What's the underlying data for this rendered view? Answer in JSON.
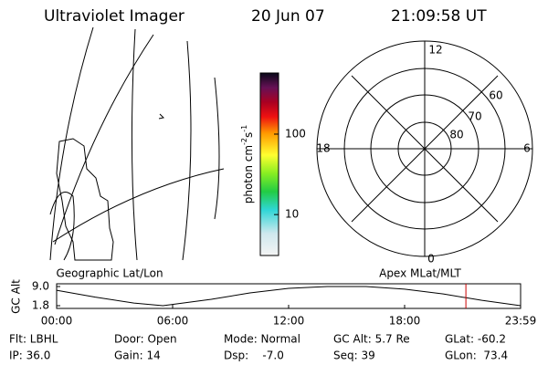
{
  "header": {
    "title": "Ultraviolet Imager",
    "date": "20 Jun 07",
    "time": "21:09:58 UT"
  },
  "colorbar": {
    "label": "photon cm",
    "label_sup1": "-2",
    "label_mid": "s",
    "label_sup2": "-1",
    "log": true,
    "lim": [
      3.1,
      575
    ],
    "ticks": [
      10,
      100
    ]
  },
  "polar": {
    "mlt_labels": [
      "12",
      "6",
      "0",
      "18"
    ],
    "lat_labels": [
      "60",
      "70",
      "80"
    ]
  },
  "map_labels": {
    "left": "Geographic Lat/Lon",
    "right": "Apex MLat/MLT"
  },
  "chart_data": {
    "type": "line",
    "ylabel": "GC Alt",
    "x": [
      0,
      2,
      4,
      5.5,
      8,
      10,
      12,
      14,
      16,
      18,
      20,
      22,
      24
    ],
    "values": [
      7.6,
      5.0,
      2.8,
      1.8,
      4.2,
      6.6,
      8.3,
      9.0,
      9.0,
      8.0,
      6.2,
      3.8,
      1.8
    ],
    "color": "#000000",
    "xlim": [
      0,
      24
    ],
    "ylim": [
      1.8,
      9.0
    ],
    "yticks": [
      {
        "value": 9.0,
        "label": "9.0"
      },
      1.8
    ],
    "xticks": [
      {
        "value": 0,
        "label": "00:00"
      },
      {
        "value": 6,
        "label": "06:00"
      },
      {
        "value": 12,
        "label": "12:00"
      },
      {
        "value": 18,
        "label": "18:00"
      },
      {
        "value": 24,
        "label": "23:59"
      }
    ],
    "marker_x": 21.17,
    "marker_color": "#cc0000"
  },
  "info": [
    [
      "Flt: LBHL",
      "Door: Open",
      "Mode: Normal",
      "GC Alt: 5.7 Re",
      "GLat: -60.2"
    ],
    [
      "IP: 36.0",
      "Gain: 14",
      "Dsp:    -7.0",
      "Seq: 39",
      "GLon:  73.4"
    ]
  ]
}
